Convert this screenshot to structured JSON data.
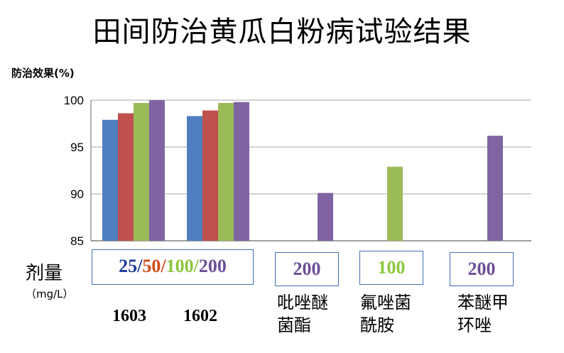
{
  "title": "田间防治黄瓜白粉病试验结果",
  "colors": {
    "blue": "#4f7fbf",
    "red": "#c0504d",
    "green": "#9bbb59",
    "purple": "#8064a2",
    "box_border": "#3f6fb5"
  },
  "chart_data": {
    "type": "bar",
    "ylabel": "防治效果(%)",
    "ylim": [
      85,
      100
    ],
    "yticks": [
      85,
      90,
      95,
      100
    ],
    "grid": true,
    "groups": [
      {
        "label": "1603",
        "values": [
          97.9,
          98.6,
          99.7,
          100.0
        ],
        "colors": [
          "blue",
          "red",
          "green",
          "purple"
        ]
      },
      {
        "label": "1602",
        "values": [
          98.3,
          98.9,
          99.7,
          99.8
        ],
        "colors": [
          "blue",
          "red",
          "green",
          "purple"
        ]
      },
      {
        "label": "吡唑醚菌酯",
        "values": [
          90.1
        ],
        "colors": [
          "purple"
        ]
      },
      {
        "label": "氟唑菌酰胺",
        "values": [
          92.9
        ],
        "colors": [
          "green"
        ]
      },
      {
        "label": "苯醚甲环唑",
        "values": [
          96.2
        ],
        "colors": [
          "purple"
        ]
      }
    ]
  },
  "dose": {
    "label": "剂量",
    "unit": "（mg/L）",
    "combo": {
      "d1": "25",
      "sep1": "/",
      "d2": "50",
      "sep2": "/",
      "d3": "100",
      "sep3": "/",
      "d4": "200"
    },
    "pyraclostrobin": "200",
    "fluopyram": "100",
    "difenoconazole": "200"
  },
  "categories": {
    "p1603": "1603",
    "p1602": "1602",
    "pyraclostrobin_l1": "吡唑醚",
    "pyraclostrobin_l2": "菌酯",
    "fluopyram_l1": "氟唑菌",
    "fluopyram_l2": "酰胺",
    "difenoconazole_l1": "苯醚甲",
    "difenoconazole_l2": "环唑"
  }
}
